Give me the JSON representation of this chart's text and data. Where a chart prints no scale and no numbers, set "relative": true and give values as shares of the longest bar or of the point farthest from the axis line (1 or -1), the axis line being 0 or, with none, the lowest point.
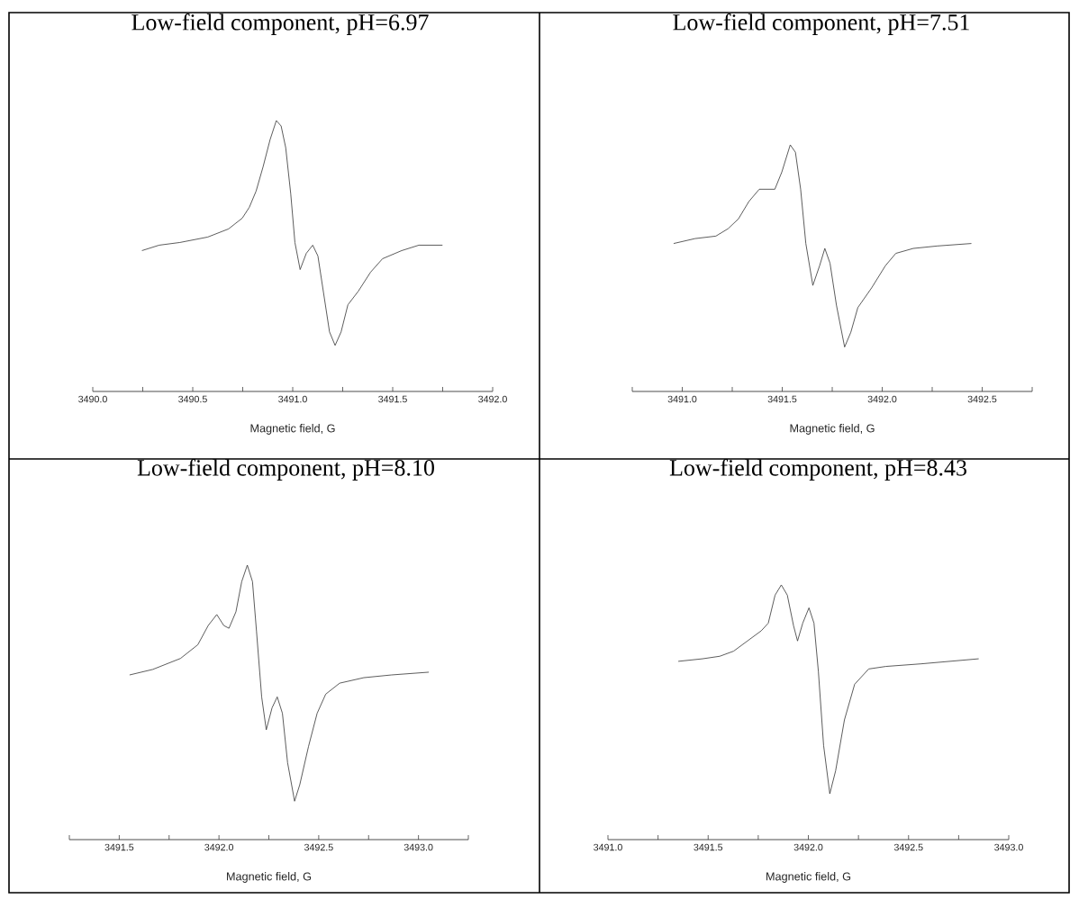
{
  "chart_data": [
    {
      "type": "line",
      "title": "Low-field component, pH=6.97",
      "xlabel": "Magnetic field, G",
      "relative": true,
      "xlim": [
        3490.0,
        3492.0
      ],
      "xticks": [
        {
          "value": 3490.0,
          "label": "3490.0"
        },
        {
          "value": 3490.25,
          "label": null
        },
        {
          "value": 3490.5,
          "label": "3490.5"
        },
        {
          "value": 3490.75,
          "label": null
        },
        {
          "value": 3491.0,
          "label": "3491.0"
        },
        {
          "value": 3491.25,
          "label": null
        },
        {
          "value": 3491.5,
          "label": "3491.5"
        },
        {
          "value": 3491.75,
          "label": null
        },
        {
          "value": 3492.0,
          "label": "3492.0"
        }
      ],
      "x": [
        3490.246,
        3490.332,
        3490.436,
        3490.575,
        3490.679,
        3490.748,
        3490.783,
        3490.817,
        3490.852,
        3490.887,
        3490.918,
        3490.942,
        3490.965,
        3490.99,
        3491.011,
        3491.037,
        3491.068,
        3491.1,
        3491.126,
        3491.155,
        3491.184,
        3491.212,
        3491.242,
        3491.276,
        3491.328,
        3491.389,
        3491.449,
        3491.545,
        3491.631,
        3491.749
      ],
      "series": [
        {
          "color": "#333333",
          "values": [
            0.52,
            0.54,
            0.55,
            0.57,
            0.6,
            0.64,
            0.68,
            0.74,
            0.83,
            0.93,
            1.0,
            0.98,
            0.9,
            0.73,
            0.55,
            0.45,
            0.51,
            0.54,
            0.5,
            0.36,
            0.22,
            0.17,
            0.22,
            0.32,
            0.37,
            0.44,
            0.49,
            0.52,
            0.54,
            0.54
          ]
        }
      ]
    },
    {
      "type": "line",
      "title": "Low-field component, pH=7.51",
      "xlabel": "Magnetic field, G",
      "relative": true,
      "xlim": [
        3490.75,
        3492.75
      ],
      "xticks": [
        {
          "value": 3490.75,
          "label": null
        },
        {
          "value": 3491.0,
          "label": "3491.0"
        },
        {
          "value": 3491.25,
          "label": null
        },
        {
          "value": 3491.5,
          "label": "3491.5"
        },
        {
          "value": 3491.75,
          "label": null
        },
        {
          "value": 3492.0,
          "label": "3492.0"
        },
        {
          "value": 3492.25,
          "label": null
        },
        {
          "value": 3492.5,
          "label": "3492.5"
        },
        {
          "value": 3492.75,
          "label": null
        }
      ],
      "x": [
        3490.957,
        3491.064,
        3491.168,
        3491.229,
        3491.281,
        3491.333,
        3491.385,
        3491.428,
        3491.463,
        3491.498,
        3491.54,
        3491.566,
        3491.592,
        3491.618,
        3491.653,
        3491.687,
        3491.713,
        3491.739,
        3491.771,
        3491.812,
        3491.843,
        3491.878,
        3491.947,
        3492.016,
        3492.068,
        3492.155,
        3492.276,
        3492.446
      ],
      "series": [
        {
          "color": "#333333",
          "values": [
            0.6,
            0.62,
            0.63,
            0.66,
            0.7,
            0.77,
            0.82,
            0.82,
            0.82,
            0.89,
            1.0,
            0.97,
            0.82,
            0.6,
            0.43,
            0.51,
            0.58,
            0.52,
            0.35,
            0.18,
            0.24,
            0.34,
            0.42,
            0.51,
            0.56,
            0.58,
            0.59,
            0.6
          ]
        }
      ]
    },
    {
      "type": "line",
      "title": "Low-field component, pH=8.10",
      "xlabel": "Magnetic field, G",
      "relative": true,
      "xlim": [
        3491.25,
        3493.25
      ],
      "xticks": [
        {
          "value": 3491.25,
          "label": null
        },
        {
          "value": 3491.5,
          "label": "3491.5"
        },
        {
          "value": 3491.75,
          "label": null
        },
        {
          "value": 3492.0,
          "label": "3492.0"
        },
        {
          "value": 3492.25,
          "label": null
        },
        {
          "value": 3492.5,
          "label": "3492.5"
        },
        {
          "value": 3492.75,
          "label": null
        },
        {
          "value": 3493.0,
          "label": "3493.0"
        },
        {
          "value": 3493.25,
          "label": null
        }
      ],
      "x": [
        3491.552,
        3491.668,
        3491.807,
        3491.894,
        3491.946,
        3491.989,
        3492.024,
        3492.05,
        3492.085,
        3492.114,
        3492.142,
        3492.168,
        3492.188,
        3492.214,
        3492.237,
        3492.266,
        3492.292,
        3492.318,
        3492.344,
        3492.379,
        3492.405,
        3492.449,
        3492.492,
        3492.535,
        3492.605,
        3492.726,
        3492.865,
        3493.052
      ],
      "series": [
        {
          "color": "#333333",
          "values": [
            0.6,
            0.62,
            0.66,
            0.71,
            0.78,
            0.82,
            0.78,
            0.77,
            0.83,
            0.94,
            1.0,
            0.94,
            0.76,
            0.52,
            0.4,
            0.48,
            0.52,
            0.46,
            0.28,
            0.14,
            0.2,
            0.34,
            0.46,
            0.53,
            0.57,
            0.59,
            0.6,
            0.61
          ]
        }
      ]
    },
    {
      "type": "line",
      "title": "Low-field component, pH=8.43",
      "xlabel": "Magnetic field, G",
      "relative": true,
      "xlim": [
        3491.0,
        3493.0
      ],
      "xticks": [
        {
          "value": 3491.0,
          "label": "3491.0"
        },
        {
          "value": 3491.25,
          "label": null
        },
        {
          "value": 3491.5,
          "label": "3491.5"
        },
        {
          "value": 3491.75,
          "label": null
        },
        {
          "value": 3492.0,
          "label": "3492.0"
        },
        {
          "value": 3492.25,
          "label": null
        },
        {
          "value": 3492.5,
          "label": "3492.5"
        },
        {
          "value": 3492.75,
          "label": null
        },
        {
          "value": 3493.0,
          "label": "3493.0"
        }
      ],
      "x": [
        3491.351,
        3491.472,
        3491.558,
        3491.627,
        3491.696,
        3491.765,
        3491.8,
        3491.834,
        3491.865,
        3491.895,
        3491.926,
        3491.946,
        3491.972,
        3492.003,
        3492.028,
        3492.05,
        3492.076,
        3492.107,
        3492.136,
        3492.18,
        3492.231,
        3492.301,
        3492.387,
        3492.56,
        3492.85
      ],
      "series": [
        {
          "color": "#333333",
          "values": [
            0.7,
            0.71,
            0.72,
            0.74,
            0.78,
            0.82,
            0.85,
            0.96,
            1.0,
            0.96,
            0.84,
            0.78,
            0.85,
            0.91,
            0.85,
            0.66,
            0.37,
            0.18,
            0.27,
            0.47,
            0.61,
            0.67,
            0.68,
            0.69,
            0.71
          ]
        }
      ]
    }
  ]
}
